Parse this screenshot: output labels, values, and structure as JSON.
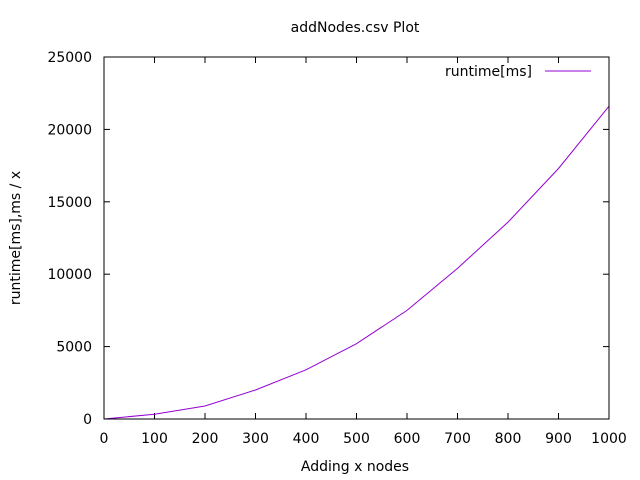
{
  "chart_data": {
    "type": "line",
    "title": "addNodes.csv Plot",
    "xlabel": "Adding x nodes",
    "ylabel": "runtime[ms],ms / x",
    "xlim": [
      0,
      1000
    ],
    "ylim": [
      0,
      25000
    ],
    "xticks": [
      0,
      100,
      200,
      300,
      400,
      500,
      600,
      700,
      800,
      900,
      1000
    ],
    "yticks": [
      0,
      5000,
      10000,
      15000,
      20000,
      25000
    ],
    "grid": false,
    "legend_position": "top-right",
    "series": [
      {
        "name": "runtime[ms]",
        "color": "#9400d3",
        "x": [
          0,
          100,
          200,
          300,
          400,
          500,
          600,
          700,
          800,
          900,
          1000
        ],
        "y": [
          0,
          330,
          900,
          2000,
          3400,
          5200,
          7500,
          10400,
          13600,
          17300,
          21600
        ]
      }
    ]
  }
}
